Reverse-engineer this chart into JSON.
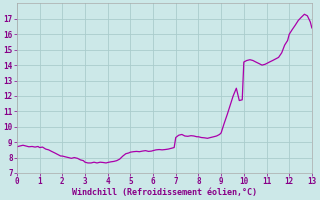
{
  "title": "",
  "xlabel": "Windchill (Refroidissement éolien,°C)",
  "ylabel": "",
  "bg_color": "#cce8e8",
  "line_color": "#aa00aa",
  "grid_color": "#aacccc",
  "xlim": [
    0,
    13
  ],
  "ylim": [
    7,
    18
  ],
  "xticks": [
    0,
    1,
    2,
    3,
    4,
    5,
    6,
    7,
    8,
    9,
    10,
    11,
    12,
    13
  ],
  "yticks": [
    7,
    8,
    9,
    10,
    11,
    12,
    13,
    14,
    15,
    16,
    17
  ],
  "x": [
    0.0,
    0.13,
    0.27,
    0.4,
    0.53,
    0.67,
    0.8,
    0.93,
    1.0,
    1.13,
    1.27,
    1.4,
    1.53,
    1.67,
    1.8,
    1.93,
    2.0,
    2.13,
    2.27,
    2.4,
    2.53,
    2.67,
    2.8,
    2.93,
    3.0,
    3.13,
    3.27,
    3.4,
    3.53,
    3.67,
    3.8,
    3.93,
    4.0,
    4.13,
    4.27,
    4.4,
    4.53,
    4.67,
    4.8,
    4.93,
    5.0,
    5.13,
    5.27,
    5.4,
    5.53,
    5.67,
    5.8,
    5.93,
    6.0,
    6.13,
    6.27,
    6.4,
    6.53,
    6.67,
    6.8,
    6.93,
    7.0,
    7.13,
    7.27,
    7.4,
    7.53,
    7.67,
    7.8,
    7.93,
    8.0,
    8.13,
    8.27,
    8.4,
    8.53,
    8.67,
    8.8,
    8.93,
    9.0,
    9.13,
    9.27,
    9.4,
    9.53,
    9.67,
    9.8,
    9.93,
    10.0,
    10.13,
    10.27,
    10.4,
    10.53,
    10.67,
    10.8,
    10.93,
    11.0,
    11.13,
    11.27,
    11.4,
    11.53,
    11.67,
    11.8,
    11.93,
    12.0,
    12.13,
    12.27,
    12.4,
    12.53,
    12.67,
    12.8,
    12.93,
    13.0
  ],
  "y": [
    8.7,
    8.75,
    8.8,
    8.75,
    8.7,
    8.72,
    8.68,
    8.72,
    8.65,
    8.68,
    8.55,
    8.5,
    8.4,
    8.3,
    8.2,
    8.1,
    8.1,
    8.05,
    8.0,
    7.95,
    8.0,
    7.95,
    7.85,
    7.8,
    7.7,
    7.65,
    7.65,
    7.7,
    7.65,
    7.7,
    7.68,
    7.65,
    7.68,
    7.72,
    7.75,
    7.8,
    7.9,
    8.1,
    8.25,
    8.3,
    8.35,
    8.38,
    8.4,
    8.38,
    8.42,
    8.45,
    8.4,
    8.42,
    8.45,
    8.5,
    8.52,
    8.5,
    8.52,
    8.55,
    8.6,
    8.65,
    9.3,
    9.45,
    9.5,
    9.4,
    9.38,
    9.42,
    9.4,
    9.35,
    9.35,
    9.3,
    9.28,
    9.25,
    9.3,
    9.35,
    9.4,
    9.5,
    9.6,
    10.2,
    10.8,
    11.4,
    12.0,
    12.5,
    11.7,
    11.75,
    14.2,
    14.3,
    14.35,
    14.3,
    14.2,
    14.1,
    14.0,
    14.05,
    14.1,
    14.2,
    14.3,
    14.4,
    14.5,
    14.8,
    15.3,
    15.6,
    16.0,
    16.3,
    16.6,
    16.9,
    17.1,
    17.3,
    17.2,
    16.8,
    16.4
  ]
}
